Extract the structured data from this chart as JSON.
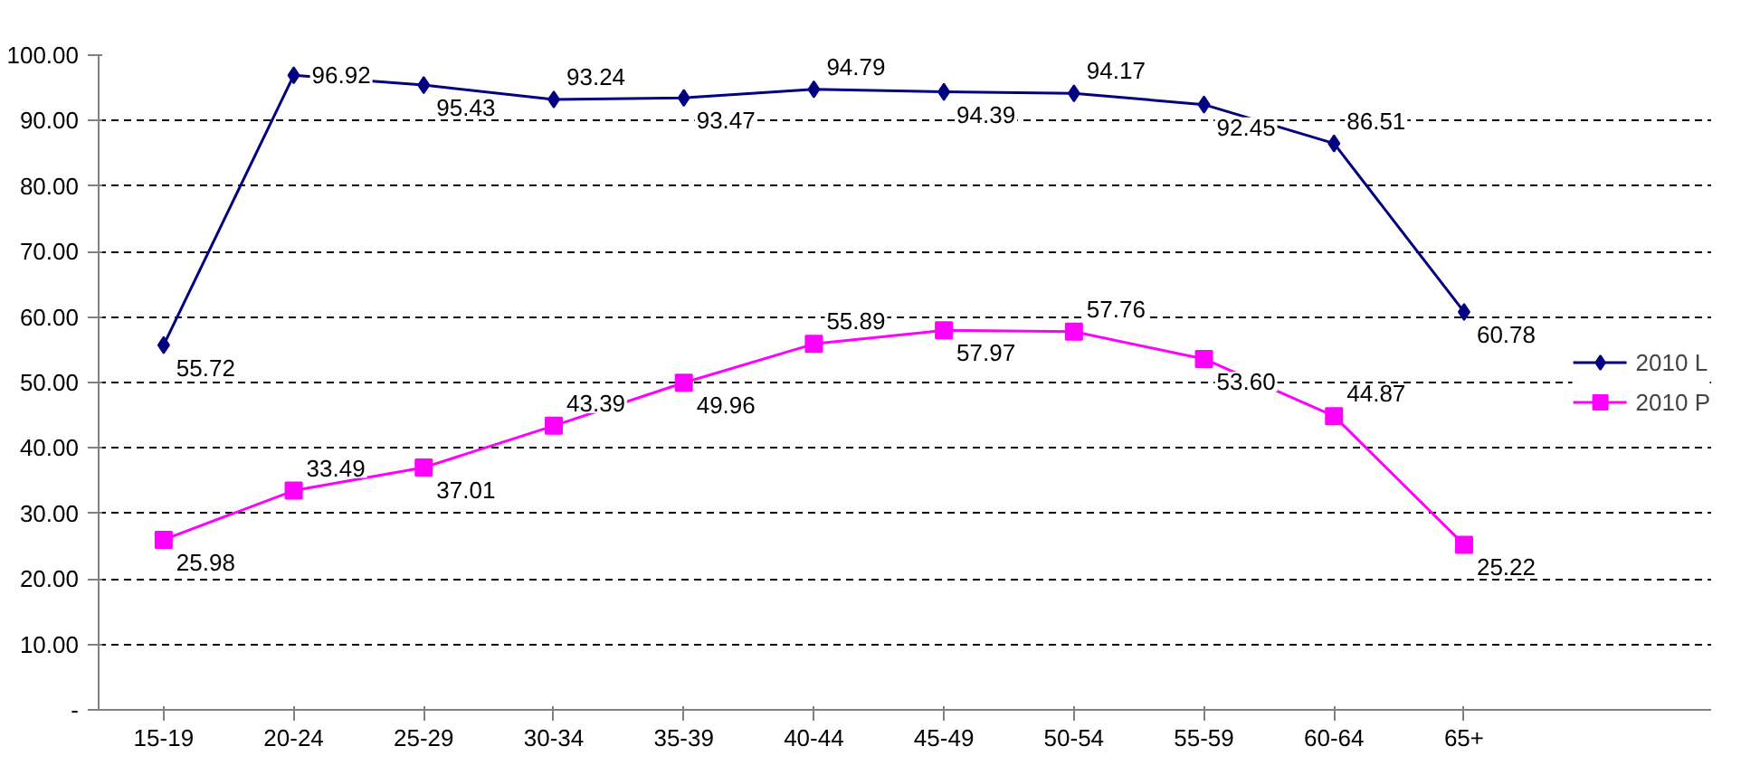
{
  "chart_data": {
    "type": "line",
    "categories": [
      "15-19",
      "20-24",
      "25-29",
      "30-34",
      "35-39",
      "40-44",
      "45-49",
      "50-54",
      "55-59",
      "60-64",
      "65+"
    ],
    "series": [
      {
        "name": "2010 L",
        "color": "#000080",
        "marker": "diamond",
        "values": [
          55.72,
          96.92,
          95.43,
          93.24,
          93.47,
          94.79,
          94.39,
          94.17,
          92.45,
          86.51,
          60.78
        ]
      },
      {
        "name": "2010 P",
        "color": "#ff00ff",
        "marker": "square",
        "values": [
          25.98,
          33.49,
          37.01,
          43.39,
          49.96,
          55.89,
          57.97,
          57.76,
          53.6,
          44.87,
          25.22
        ]
      }
    ],
    "value_labels": [
      [
        "55.72",
        "96.92",
        "95.43",
        "93.24",
        "93.47",
        "94.79",
        "94.39",
        "94.17",
        "92.45",
        "86.51",
        "60.78"
      ],
      [
        "25.98",
        "33.49",
        "37.01",
        "43.39",
        "49.96",
        "55.89",
        "57.97",
        "57.76",
        "53.60",
        "44.87",
        "25.22"
      ]
    ],
    "ylim": [
      0,
      100
    ],
    "yticks": [
      {
        "value": 0,
        "label": "-"
      },
      {
        "value": 10,
        "label": "10.00"
      },
      {
        "value": 20,
        "label": "20.00"
      },
      {
        "value": 30,
        "label": "30.00"
      },
      {
        "value": 40,
        "label": "40.00"
      },
      {
        "value": 50,
        "label": "50.00"
      },
      {
        "value": 60,
        "label": "60.00"
      },
      {
        "value": 70,
        "label": "70.00"
      },
      {
        "value": 80,
        "label": "80.00"
      },
      {
        "value": 90,
        "label": "90.00"
      },
      {
        "value": 100,
        "label": "100.00"
      }
    ],
    "grid": "y",
    "legend": "right",
    "line_style": "solid"
  }
}
